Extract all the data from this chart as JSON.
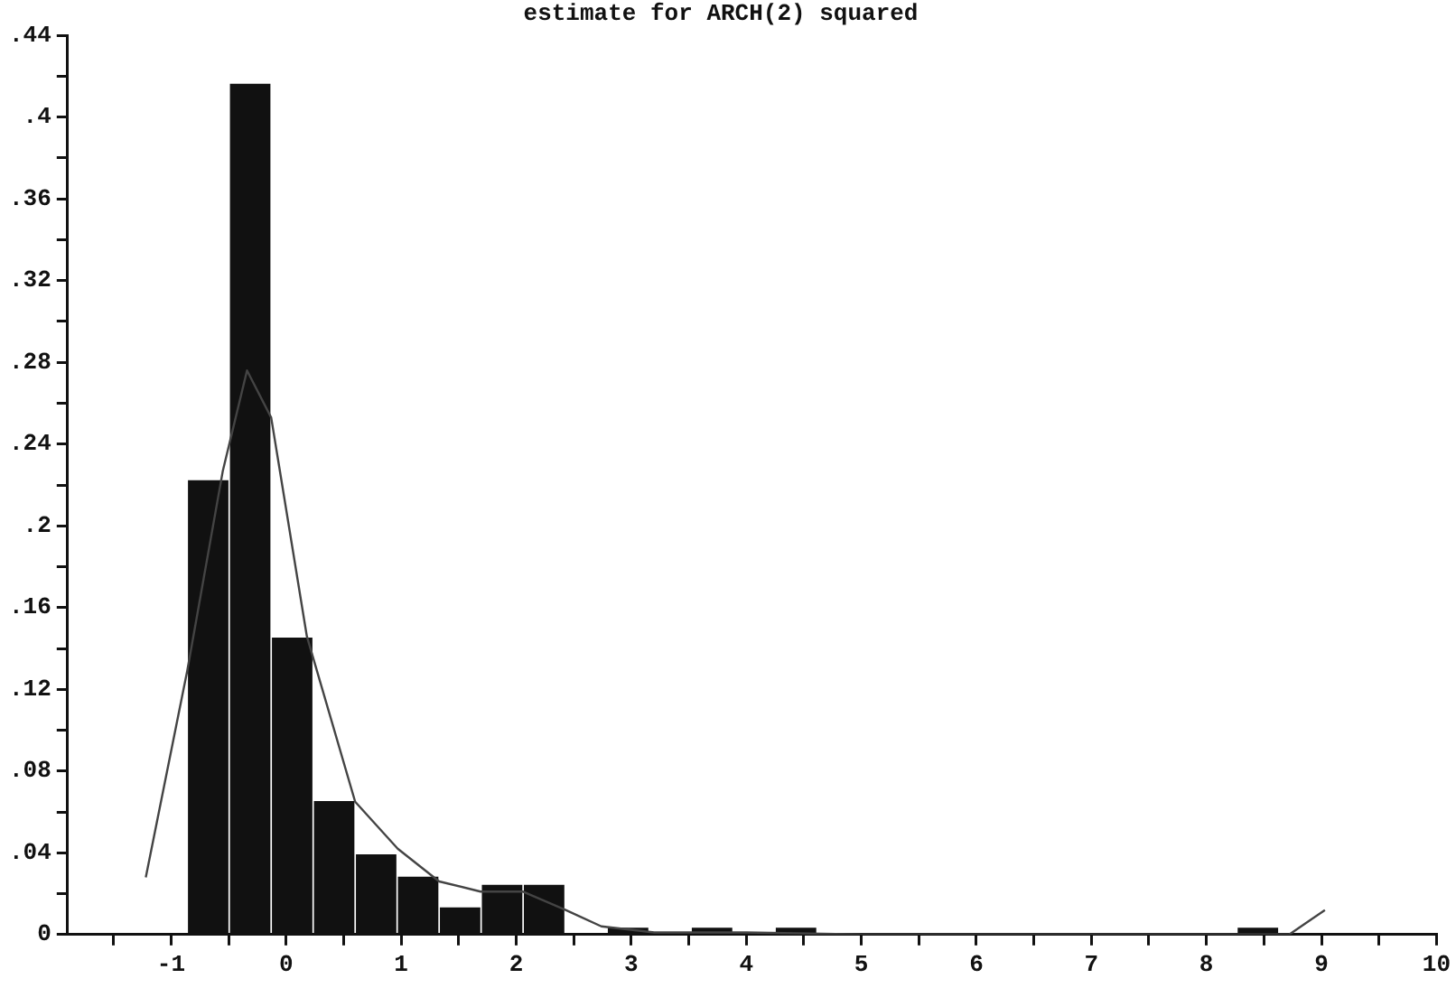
{
  "chart_data": {
    "type": "histogram",
    "title": "estimate for ARCH(2) squared",
    "bins": [
      -0.86,
      -0.495,
      -0.13,
      0.235,
      0.6,
      0.965,
      1.33,
      1.695,
      2.06,
      2.425,
      2.79,
      3.155,
      3.52,
      3.885,
      4.25,
      4.615,
      4.98,
      5.345,
      5.71,
      6.075,
      6.44,
      6.805,
      7.17,
      7.535,
      7.9,
      8.265,
      8.63
    ],
    "values": [
      0.222,
      0.416,
      0.145,
      0.065,
      0.039,
      0.028,
      0.013,
      0.024,
      0.024,
      0,
      0.003,
      0,
      0.003,
      0,
      0.003,
      0,
      0,
      0,
      0,
      0,
      0,
      0,
      0,
      0,
      0,
      0.003
    ],
    "color": "#111111",
    "series": [
      {
        "type": "line",
        "color": "#444444",
        "x": [
          -1.22,
          -0.86,
          -0.55,
          -0.34,
          -0.13,
          0.18,
          0.6,
          0.97,
          1.33,
          1.69,
          2.06,
          2.43,
          2.74,
          3.2,
          4,
          5,
          6,
          7,
          8,
          8.72,
          9.03
        ],
        "values": [
          0.028,
          0.129,
          0.227,
          0.276,
          0.253,
          0.146,
          0.065,
          0.042,
          0.026,
          0.021,
          0.021,
          0.012,
          0.004,
          0.001,
          0.001,
          0,
          0,
          0,
          0,
          0,
          0.012
        ]
      }
    ],
    "xlim": [
      -1.9,
      10
    ],
    "xticks": [
      {
        "value": -1.5,
        "label": null
      },
      -1,
      {
        "value": -0.5,
        "label": null
      },
      0,
      {
        "value": 0.5,
        "label": null
      },
      1,
      {
        "value": 1.5,
        "label": null
      },
      2,
      {
        "value": 2.5,
        "label": null
      },
      3,
      {
        "value": 3.5,
        "label": null
      },
      4,
      {
        "value": 4.5,
        "label": null
      },
      5,
      {
        "value": 5.5,
        "label": null
      },
      6,
      {
        "value": 6.5,
        "label": null
      },
      7,
      {
        "value": 7.5,
        "label": null
      },
      8,
      {
        "value": 8.5,
        "label": null
      },
      9,
      {
        "value": 9.5,
        "label": null
      },
      10
    ],
    "ylim": [
      0,
      0.44
    ],
    "yticks": [
      0,
      {
        "value": 0.02,
        "label": null
      },
      {
        "value": 0.04,
        "label": ".04"
      },
      {
        "value": 0.06,
        "label": null
      },
      {
        "value": 0.08,
        "label": ".08"
      },
      {
        "value": 0.1,
        "label": null
      },
      {
        "value": 0.12,
        "label": ".12"
      },
      {
        "value": 0.14,
        "label": null
      },
      {
        "value": 0.16,
        "label": ".16"
      },
      {
        "value": 0.18,
        "label": null
      },
      {
        "value": 0.2,
        "label": ".2"
      },
      {
        "value": 0.22,
        "label": null
      },
      {
        "value": 0.24,
        "label": ".24"
      },
      {
        "value": 0.26,
        "label": null
      },
      {
        "value": 0.28,
        "label": ".28"
      },
      {
        "value": 0.3,
        "label": null
      },
      {
        "value": 0.32,
        "label": ".32"
      },
      {
        "value": 0.34,
        "label": null
      },
      {
        "value": 0.36,
        "label": ".36"
      },
      {
        "value": 0.38,
        "label": null
      },
      {
        "value": 0.4,
        "label": ".4"
      },
      {
        "value": 0.42,
        "label": null
      },
      {
        "value": 0.44,
        "label": ".44"
      }
    ],
    "grid": false,
    "legend": false,
    "marker": "none",
    "line_style": "solid"
  }
}
